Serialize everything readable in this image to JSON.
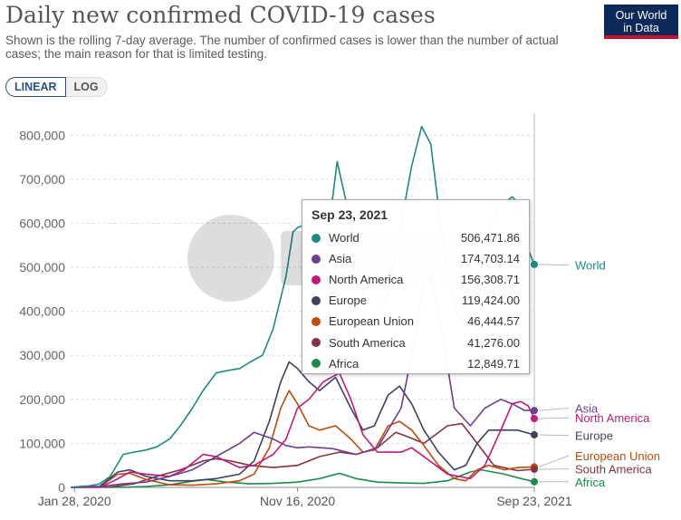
{
  "header": {
    "title": "Daily new confirmed COVID-19 cases",
    "subtitle": "Shown is the rolling 7-day average. The number of confirmed cases is lower than the number of actual cases; the main reason for that is limited testing.",
    "logo_line1": "Our World",
    "logo_line2": "in Data"
  },
  "controls": {
    "linear_label": "LINEAR",
    "log_label": "LOG",
    "active": "LINEAR"
  },
  "tooltip": {
    "date": "Sep 23, 2021",
    "rows": [
      {
        "name": "World",
        "value": "506,471.86",
        "color": "#1d8a87"
      },
      {
        "name": "Asia",
        "value": "174,703.14",
        "color": "#6d3e91"
      },
      {
        "name": "North America",
        "value": "156,308.71",
        "color": "#c4187c"
      },
      {
        "name": "Europe",
        "value": "119,424.00",
        "color": "#3b4360"
      },
      {
        "name": "European Union",
        "value": "46,444.57",
        "color": "#c14a0c"
      },
      {
        "name": "South America",
        "value": "41,276.00",
        "color": "#86333e"
      },
      {
        "name": "Africa",
        "value": "12,849.71",
        "color": "#1b8c4a"
      }
    ]
  },
  "chart_data": {
    "type": "line",
    "title": "Daily new confirmed COVID-19 cases",
    "subtitle": "Shown is the rolling 7-day average. The number of confirmed cases is lower than the number of actual cases; the main reason for that is limited testing.",
    "ylim": [
      0,
      850000
    ],
    "yticks": [
      0,
      100000,
      200000,
      300000,
      400000,
      500000,
      600000,
      700000,
      800000
    ],
    "ytick_labels": [
      "0",
      "100,000",
      "200,000",
      "300,000",
      "400,000",
      "500,000",
      "600,000",
      "700,000",
      "800,000"
    ],
    "x_range": [
      "2020-01-23",
      "2021-09-23"
    ],
    "xtick_labels": [
      {
        "date": "2020-01-28",
        "label": "Jan 28, 2020"
      },
      {
        "date": "2020-11-16",
        "label": "Nov 16, 2020"
      },
      {
        "date": "2021-09-23",
        "label": "Sep 23, 2021"
      }
    ],
    "grid": true,
    "legend": "right end labels",
    "series": [
      {
        "name": "World",
        "color": "#1d8a87",
        "label_y": 505000,
        "points": [
          [
            "2020-01-23",
            0
          ],
          [
            "2020-02-15",
            3000
          ],
          [
            "2020-03-01",
            8000
          ],
          [
            "2020-03-15",
            25000
          ],
          [
            "2020-04-01",
            75000
          ],
          [
            "2020-04-15",
            80000
          ],
          [
            "2020-05-01",
            85000
          ],
          [
            "2020-05-15",
            92000
          ],
          [
            "2020-06-01",
            110000
          ],
          [
            "2020-06-15",
            140000
          ],
          [
            "2020-07-01",
            180000
          ],
          [
            "2020-07-15",
            220000
          ],
          [
            "2020-08-01",
            260000
          ],
          [
            "2020-08-15",
            265000
          ],
          [
            "2020-09-01",
            270000
          ],
          [
            "2020-09-15",
            285000
          ],
          [
            "2020-10-01",
            300000
          ],
          [
            "2020-10-15",
            360000
          ],
          [
            "2020-11-01",
            480000
          ],
          [
            "2020-11-10",
            580000
          ],
          [
            "2020-11-16",
            590000
          ],
          [
            "2020-12-01",
            600000
          ],
          [
            "2020-12-15",
            640000
          ],
          [
            "2020-12-28",
            600000
          ],
          [
            "2021-01-07",
            740000
          ],
          [
            "2021-01-20",
            640000
          ],
          [
            "2021-02-01",
            520000
          ],
          [
            "2021-02-15",
            400000
          ],
          [
            "2021-03-01",
            380000
          ],
          [
            "2021-03-15",
            450000
          ],
          [
            "2021-04-01",
            600000
          ],
          [
            "2021-04-15",
            730000
          ],
          [
            "2021-04-28",
            820000
          ],
          [
            "2021-05-10",
            780000
          ],
          [
            "2021-05-20",
            640000
          ],
          [
            "2021-06-01",
            480000
          ],
          [
            "2021-06-15",
            390000
          ],
          [
            "2021-06-25",
            370000
          ],
          [
            "2021-07-10",
            450000
          ],
          [
            "2021-07-25",
            580000
          ],
          [
            "2021-08-10",
            640000
          ],
          [
            "2021-08-25",
            660000
          ],
          [
            "2021-09-05",
            640000
          ],
          [
            "2021-09-15",
            540000
          ],
          [
            "2021-09-23",
            506471.86
          ]
        ]
      },
      {
        "name": "Asia",
        "color": "#6d3e91",
        "label_y": 180000,
        "points": [
          [
            "2020-01-23",
            0
          ],
          [
            "2020-02-10",
            3000
          ],
          [
            "2020-03-01",
            2000
          ],
          [
            "2020-04-01",
            8000
          ],
          [
            "2020-05-01",
            12000
          ],
          [
            "2020-06-01",
            25000
          ],
          [
            "2020-07-01",
            40000
          ],
          [
            "2020-08-01",
            70000
          ],
          [
            "2020-09-01",
            100000
          ],
          [
            "2020-09-20",
            125000
          ],
          [
            "2020-10-15",
            110000
          ],
          [
            "2020-11-01",
            95000
          ],
          [
            "2020-11-16",
            90000
          ],
          [
            "2020-12-01",
            92000
          ],
          [
            "2021-01-01",
            88000
          ],
          [
            "2021-02-01",
            75000
          ],
          [
            "2021-03-01",
            90000
          ],
          [
            "2021-04-01",
            180000
          ],
          [
            "2021-04-15",
            300000
          ],
          [
            "2021-05-01",
            460000
          ],
          [
            "2021-05-10",
            480000
          ],
          [
            "2021-05-25",
            350000
          ],
          [
            "2021-06-10",
            180000
          ],
          [
            "2021-07-01",
            140000
          ],
          [
            "2021-07-20",
            180000
          ],
          [
            "2021-08-10",
            200000
          ],
          [
            "2021-08-25",
            190000
          ],
          [
            "2021-09-10",
            175000
          ],
          [
            "2021-09-23",
            174703.14
          ]
        ]
      },
      {
        "name": "North America",
        "color": "#c4187c",
        "label_y": 158000,
        "points": [
          [
            "2020-01-23",
            0
          ],
          [
            "2020-03-01",
            500
          ],
          [
            "2020-03-20",
            15000
          ],
          [
            "2020-04-10",
            35000
          ],
          [
            "2020-05-01",
            30000
          ],
          [
            "2020-06-01",
            25000
          ],
          [
            "2020-06-20",
            40000
          ],
          [
            "2020-07-15",
            75000
          ],
          [
            "2020-08-01",
            70000
          ],
          [
            "2020-09-01",
            45000
          ],
          [
            "2020-09-20",
            50000
          ],
          [
            "2020-10-15",
            75000
          ],
          [
            "2020-11-01",
            110000
          ],
          [
            "2020-11-16",
            180000
          ],
          [
            "2020-12-01",
            200000
          ],
          [
            "2020-12-20",
            240000
          ],
          [
            "2021-01-10",
            260000
          ],
          [
            "2021-01-25",
            200000
          ],
          [
            "2021-02-10",
            120000
          ],
          [
            "2021-03-01",
            80000
          ],
          [
            "2021-04-01",
            80000
          ],
          [
            "2021-04-15",
            90000
          ],
          [
            "2021-05-01",
            70000
          ],
          [
            "2021-06-01",
            30000
          ],
          [
            "2021-07-01",
            20000
          ],
          [
            "2021-07-20",
            50000
          ],
          [
            "2021-08-10",
            130000
          ],
          [
            "2021-08-25",
            190000
          ],
          [
            "2021-09-05",
            195000
          ],
          [
            "2021-09-15",
            185000
          ],
          [
            "2021-09-23",
            156308.71
          ]
        ]
      },
      {
        "name": "Europe",
        "color": "#3b4360",
        "label_y": 118000,
        "points": [
          [
            "2020-01-23",
            0
          ],
          [
            "2020-03-01",
            2000
          ],
          [
            "2020-03-25",
            35000
          ],
          [
            "2020-04-10",
            40000
          ],
          [
            "2020-05-01",
            25000
          ],
          [
            "2020-06-01",
            15000
          ],
          [
            "2020-07-01",
            15000
          ],
          [
            "2020-08-01",
            20000
          ],
          [
            "2020-09-01",
            30000
          ],
          [
            "2020-09-20",
            60000
          ],
          [
            "2020-10-10",
            150000
          ],
          [
            "2020-10-25",
            240000
          ],
          [
            "2020-11-05",
            285000
          ],
          [
            "2020-11-16",
            270000
          ],
          [
            "2020-12-01",
            240000
          ],
          [
            "2020-12-15",
            220000
          ],
          [
            "2021-01-05",
            250000
          ],
          [
            "2021-01-25",
            180000
          ],
          [
            "2021-02-10",
            130000
          ],
          [
            "2021-02-25",
            140000
          ],
          [
            "2021-03-15",
            210000
          ],
          [
            "2021-03-30",
            230000
          ],
          [
            "2021-04-15",
            190000
          ],
          [
            "2021-05-01",
            130000
          ],
          [
            "2021-05-20",
            80000
          ],
          [
            "2021-06-10",
            40000
          ],
          [
            "2021-06-25",
            50000
          ],
          [
            "2021-07-10",
            100000
          ],
          [
            "2021-07-25",
            130000
          ],
          [
            "2021-08-15",
            130000
          ],
          [
            "2021-09-01",
            130000
          ],
          [
            "2021-09-23",
            119424.0
          ]
        ]
      },
      {
        "name": "European Union",
        "color": "#c14a0c",
        "label_y": 72000,
        "points": [
          [
            "2020-01-23",
            0
          ],
          [
            "2020-03-01",
            1000
          ],
          [
            "2020-03-25",
            30000
          ],
          [
            "2020-04-10",
            32000
          ],
          [
            "2020-05-01",
            18000
          ],
          [
            "2020-06-01",
            6000
          ],
          [
            "2020-07-01",
            5000
          ],
          [
            "2020-08-01",
            8000
          ],
          [
            "2020-09-01",
            15000
          ],
          [
            "2020-09-20",
            30000
          ],
          [
            "2020-10-10",
            90000
          ],
          [
            "2020-10-25",
            180000
          ],
          [
            "2020-11-05",
            220000
          ],
          [
            "2020-11-16",
            190000
          ],
          [
            "2020-12-01",
            140000
          ],
          [
            "2020-12-15",
            130000
          ],
          [
            "2021-01-05",
            140000
          ],
          [
            "2021-01-25",
            110000
          ],
          [
            "2021-02-10",
            80000
          ],
          [
            "2021-02-25",
            85000
          ],
          [
            "2021-03-15",
            140000
          ],
          [
            "2021-03-30",
            150000
          ],
          [
            "2021-04-15",
            130000
          ],
          [
            "2021-05-01",
            95000
          ],
          [
            "2021-05-20",
            50000
          ],
          [
            "2021-06-10",
            20000
          ],
          [
            "2021-06-25",
            15000
          ],
          [
            "2021-07-10",
            40000
          ],
          [
            "2021-07-25",
            50000
          ],
          [
            "2021-08-15",
            40000
          ],
          [
            "2021-09-01",
            45000
          ],
          [
            "2021-09-23",
            46444.57
          ]
        ]
      },
      {
        "name": "South America",
        "color": "#86333e",
        "label_y": 42000,
        "points": [
          [
            "2020-01-23",
            0
          ],
          [
            "2020-03-15",
            1000
          ],
          [
            "2020-04-15",
            8000
          ],
          [
            "2020-05-15",
            25000
          ],
          [
            "2020-06-15",
            40000
          ],
          [
            "2020-07-15",
            60000
          ],
          [
            "2020-08-01",
            65000
          ],
          [
            "2020-08-20",
            60000
          ],
          [
            "2020-09-15",
            50000
          ],
          [
            "2020-10-15",
            45000
          ],
          [
            "2020-11-16",
            50000
          ],
          [
            "2020-12-15",
            70000
          ],
          [
            "2021-01-10",
            80000
          ],
          [
            "2021-02-01",
            75000
          ],
          [
            "2021-03-01",
            90000
          ],
          [
            "2021-03-25",
            125000
          ],
          [
            "2021-04-10",
            115000
          ],
          [
            "2021-05-01",
            100000
          ],
          [
            "2021-06-01",
            140000
          ],
          [
            "2021-06-20",
            145000
          ],
          [
            "2021-07-10",
            100000
          ],
          [
            "2021-08-01",
            50000
          ],
          [
            "2021-09-01",
            38000
          ],
          [
            "2021-09-23",
            41276.0
          ]
        ]
      },
      {
        "name": "Africa",
        "color": "#1b8c4a",
        "label_y": 12849.71,
        "points": [
          [
            "2020-01-23",
            0
          ],
          [
            "2020-04-01",
            500
          ],
          [
            "2020-05-01",
            2000
          ],
          [
            "2020-06-01",
            6000
          ],
          [
            "2020-07-01",
            14000
          ],
          [
            "2020-07-20",
            18000
          ],
          [
            "2020-08-15",
            12000
          ],
          [
            "2020-09-15",
            8000
          ],
          [
            "2020-10-15",
            9000
          ],
          [
            "2020-11-16",
            12000
          ],
          [
            "2020-12-15",
            20000
          ],
          [
            "2021-01-10",
            32000
          ],
          [
            "2021-02-01",
            20000
          ],
          [
            "2021-03-01",
            12000
          ],
          [
            "2021-04-01",
            10000
          ],
          [
            "2021-05-01",
            9000
          ],
          [
            "2021-06-01",
            15000
          ],
          [
            "2021-07-01",
            35000
          ],
          [
            "2021-07-15",
            40000
          ],
          [
            "2021-08-15",
            30000
          ],
          [
            "2021-09-01",
            22000
          ],
          [
            "2021-09-23",
            12849.71
          ]
        ]
      }
    ]
  }
}
